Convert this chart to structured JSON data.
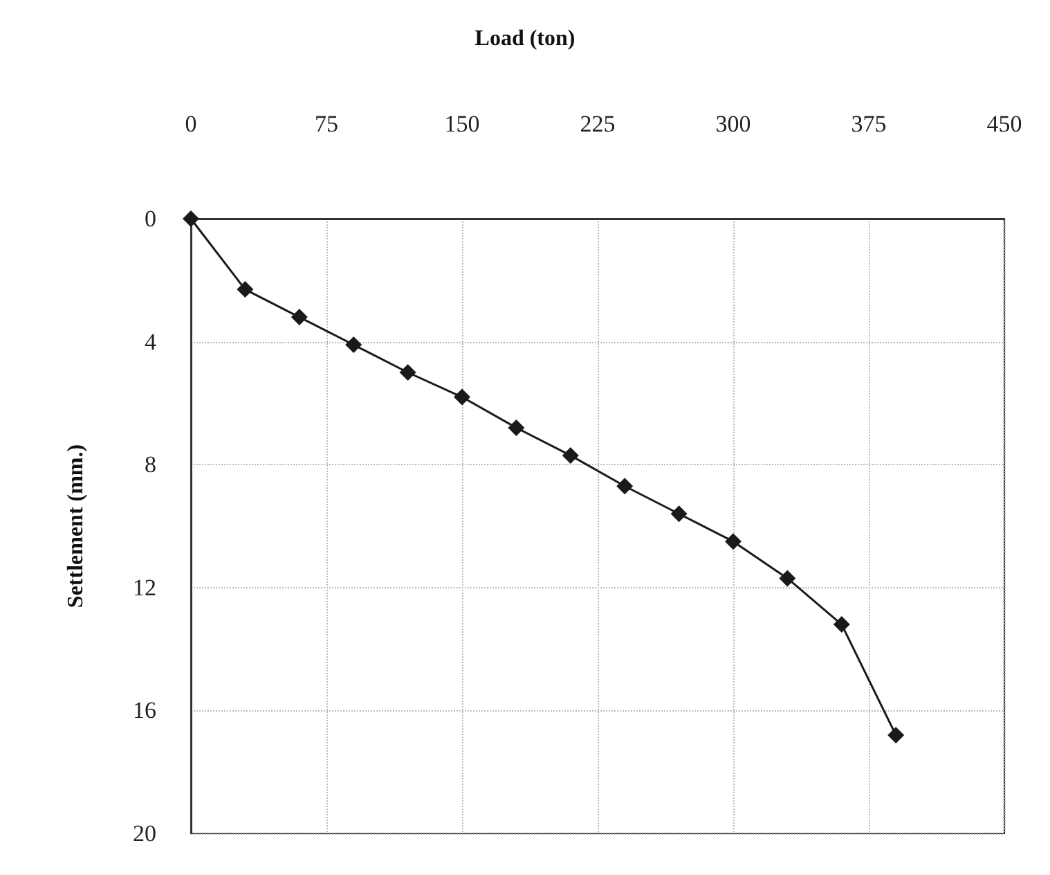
{
  "chart_data": {
    "type": "line",
    "xlabel": "Load (ton)",
    "ylabel": "Settlement (mm.)",
    "x": [
      0,
      30,
      60,
      90,
      120,
      150,
      180,
      210,
      240,
      270,
      300,
      330,
      360,
      390
    ],
    "series": [
      {
        "color": "#1a1a1a",
        "values": [
          0,
          2.3,
          3.2,
          4.1,
          5.0,
          5.8,
          6.8,
          7.7,
          8.7,
          9.6,
          10.5,
          11.7,
          13.2,
          16.8
        ]
      }
    ],
    "xlim": [
      0,
      450
    ],
    "xticks": [
      0,
      75,
      150,
      225,
      300,
      375,
      450
    ],
    "ylim": [
      20,
      0
    ],
    "yticks": [
      0,
      4,
      8,
      12,
      16,
      20
    ],
    "grid": true,
    "marker": "diamond",
    "line_style": "solid"
  }
}
